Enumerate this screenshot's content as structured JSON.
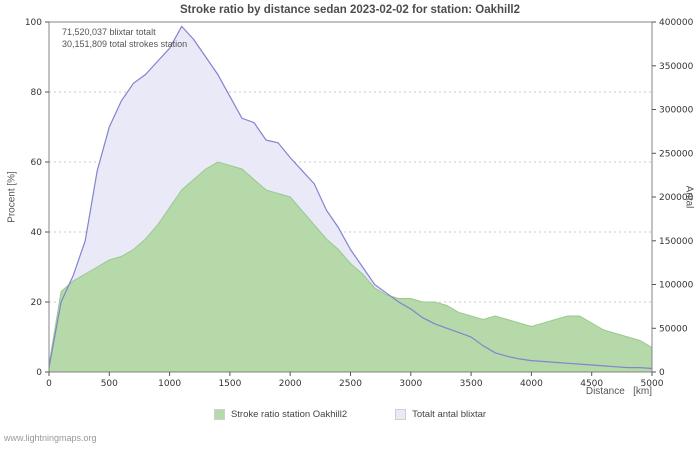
{
  "title": "Stroke ratio by distance sedan 2023-02-02 for station: Oakhill2",
  "annotations": {
    "line1": "71,520,037 blixtar totalt",
    "line2": "30,151,809 total strokes station"
  },
  "watermark": "www.lightningmaps.org",
  "chart_data": {
    "type": "area",
    "title": "Stroke ratio by distance sedan 2023-02-02 for station: Oakhill2",
    "xlabel": "Distance   [km]",
    "ylabel_left": "Procent   [%]",
    "ylabel_right": "Antal",
    "xlim": [
      0,
      5000
    ],
    "ylim_left": [
      0,
      100
    ],
    "ylim_right": [
      0,
      400000
    ],
    "xticks": [
      0,
      500,
      1000,
      1500,
      2000,
      2500,
      3000,
      3500,
      4000,
      4500,
      5000
    ],
    "yticks_left": [
      0,
      20,
      40,
      60,
      80,
      100
    ],
    "yticks_right": [
      0,
      50000,
      100000,
      150000,
      200000,
      250000,
      300000,
      350000,
      400000
    ],
    "grid": "horizontal-dotted",
    "legend_position": "bottom",
    "x": [
      0,
      100,
      200,
      300,
      400,
      500,
      600,
      700,
      800,
      900,
      1000,
      1100,
      1200,
      1300,
      1400,
      1500,
      1600,
      1700,
      1800,
      1900,
      2000,
      2100,
      2200,
      2300,
      2400,
      2500,
      2600,
      2700,
      2800,
      2900,
      3000,
      3100,
      3200,
      3300,
      3400,
      3500,
      3600,
      3700,
      3800,
      3900,
      4000,
      4100,
      4200,
      4300,
      4400,
      4500,
      4600,
      4700,
      4800,
      4900,
      5000
    ],
    "series": [
      {
        "name": "Stroke ratio station Oakhill2",
        "axis": "left",
        "unit": "%",
        "fill": "#b5d9a9",
        "stroke": "#9cc88f",
        "values": [
          2,
          23,
          26,
          28,
          30,
          32,
          33,
          35,
          38,
          42,
          47,
          52,
          55,
          58,
          60,
          59,
          58,
          55,
          52,
          51,
          50,
          46,
          42,
          38,
          35,
          31,
          28,
          24,
          22,
          21,
          21,
          20,
          20,
          19,
          17,
          16,
          15,
          16,
          15,
          14,
          13,
          14,
          15,
          16,
          16,
          14,
          12,
          11,
          10,
          9,
          7
        ]
      },
      {
        "name": "Totalt antal blixtar",
        "axis": "right",
        "unit": "strokes",
        "fill": "#e9e9f8",
        "stroke": "#8383cf",
        "values": [
          5000,
          80000,
          110000,
          150000,
          230000,
          280000,
          310000,
          330000,
          340000,
          355000,
          370000,
          395000,
          380000,
          360000,
          340000,
          315000,
          290000,
          285000,
          265000,
          262000,
          245000,
          230000,
          215000,
          185000,
          165000,
          140000,
          120000,
          100000,
          90000,
          80000,
          72000,
          62000,
          55000,
          50000,
          45000,
          40000,
          30000,
          22000,
          18000,
          15000,
          13000,
          12000,
          11000,
          10000,
          9000,
          8000,
          7000,
          6000,
          5000,
          5000,
          4000
        ]
      }
    ]
  }
}
